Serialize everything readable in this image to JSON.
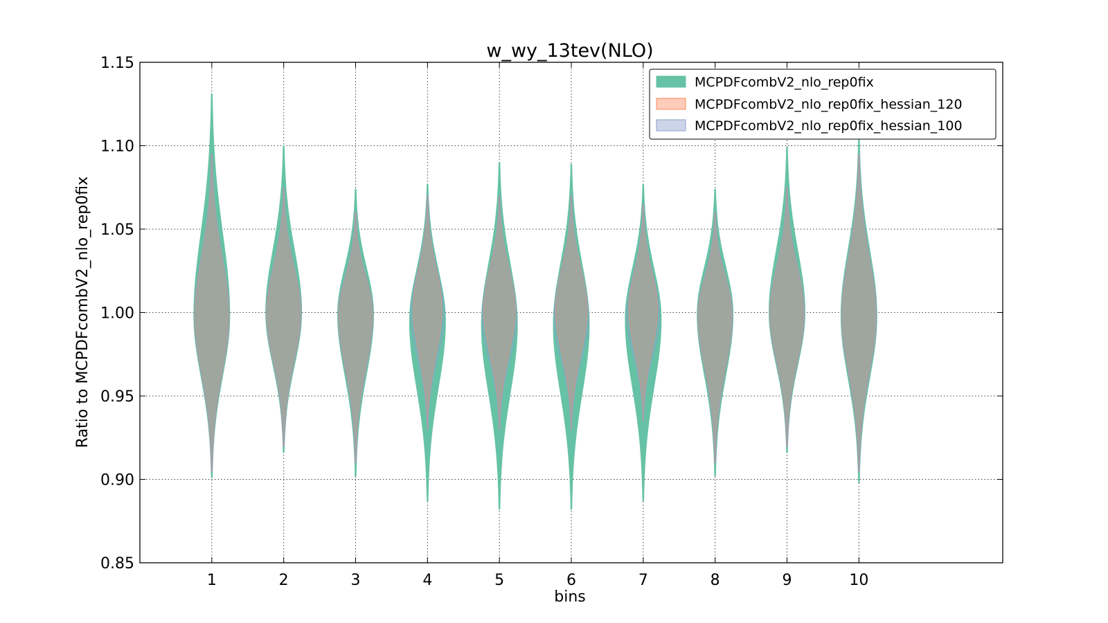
{
  "chart_data": {
    "type": "violin",
    "title": "w_wy_13tev(NLO)",
    "xlabel": "bins",
    "ylabel": "Ratio to MCPDFcombV2_nlo_rep0fix",
    "categories": [
      "1",
      "2",
      "3",
      "4",
      "5",
      "6",
      "7",
      "8",
      "9",
      "10"
    ],
    "xlim": [
      0,
      12
    ],
    "ylim": [
      0.85,
      1.15
    ],
    "yticks": [
      "0.85",
      "0.90",
      "0.95",
      "1.00",
      "1.05",
      "1.10",
      "1.15"
    ],
    "grid": true,
    "legend_position": "top-right",
    "series": [
      {
        "name": "MCPDFcombV2_nlo_rep0fix",
        "color": "#66c2a5",
        "opacity": 1.0,
        "center": [
          0.998,
          1.0,
          0.999,
          0.995,
          0.993,
          0.993,
          0.996,
          0.999,
          1.0,
          0.998
        ],
        "min": [
          0.901,
          0.916,
          0.902,
          0.887,
          0.882,
          0.882,
          0.887,
          0.902,
          0.916,
          0.898
        ],
        "max": [
          1.131,
          1.1,
          1.074,
          1.077,
          1.09,
          1.089,
          1.077,
          1.074,
          1.099,
          1.104
        ],
        "half_width": [
          0.25,
          0.25,
          0.25,
          0.25,
          0.25,
          0.25,
          0.25,
          0.25,
          0.25,
          0.25
        ]
      },
      {
        "name": "MCPDFcombV2_nlo_rep0fix_hessian_120",
        "color": "#fc8d62",
        "opacity": 0.45,
        "center": [
          0.998,
          1.0,
          0.999,
          1.002,
          1.002,
          1.002,
          1.002,
          0.999,
          1.0,
          0.998
        ],
        "min": [
          0.905,
          0.92,
          0.91,
          0.93,
          0.93,
          0.93,
          0.935,
          0.91,
          0.92,
          0.905
        ],
        "max": [
          1.095,
          1.075,
          1.06,
          1.07,
          1.07,
          1.07,
          1.065,
          1.06,
          1.075,
          1.095
        ],
        "half_width": [
          0.24,
          0.24,
          0.24,
          0.2,
          0.22,
          0.22,
          0.2,
          0.24,
          0.24,
          0.24
        ]
      },
      {
        "name": "MCPDFcombV2_nlo_rep0fix_hessian_100",
        "color": "#8da0cb",
        "opacity": 0.35,
        "center": [
          0.998,
          1.0,
          0.999,
          0.998,
          0.997,
          0.997,
          0.998,
          0.999,
          1.0,
          0.998
        ],
        "min": [
          0.905,
          0.92,
          0.91,
          0.93,
          0.93,
          0.93,
          0.935,
          0.91,
          0.92,
          0.905
        ],
        "max": [
          1.095,
          1.075,
          1.06,
          1.07,
          1.07,
          1.07,
          1.065,
          1.06,
          1.075,
          1.095
        ],
        "half_width": [
          0.24,
          0.24,
          0.24,
          0.23,
          0.24,
          0.24,
          0.23,
          0.24,
          0.24,
          0.24
        ]
      }
    ]
  }
}
